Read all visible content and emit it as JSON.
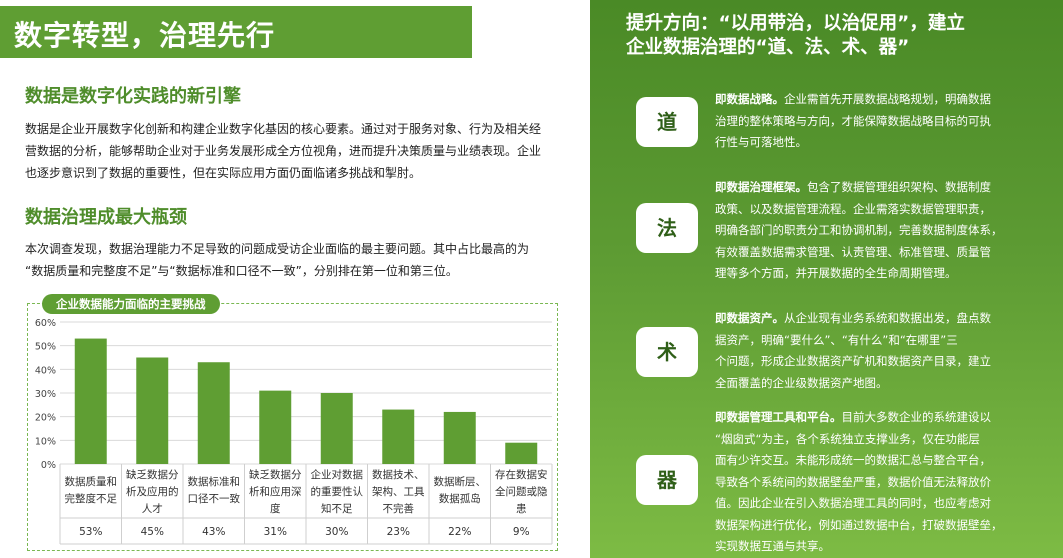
{
  "header": {
    "title": "数字转型，治理先行"
  },
  "section1": {
    "heading": "数据是数字化实践的新引擎",
    "lines": [
      "数据是企业开展数字化创新和构建企业数字化基因的核心要素。通过对于服务对象、行为及相关经",
      "营数据的分析，能够帮助企业对于业务发展形成全方位视角，进而提升决策质量与业绩表现。企业",
      "也逐步意识到了数据的重要性，但在实际应用方面仍面临诸多挑战和掣肘。"
    ]
  },
  "section2": {
    "heading": "数据治理成最大瓶颈",
    "lines": [
      "本次调查发现，数据治理能力不足导致的问题成受访企业面临的最主要问题。其中占比最高的为",
      "“数据质量和完整度不足”与“数据标准和口径不一致”，分别排在第一位和第三位。"
    ]
  },
  "chart_data": {
    "type": "bar",
    "title": "企业数据能力面临的主要挑战",
    "categories": [
      [
        "数据质量和",
        "完整度不足"
      ],
      [
        "缺乏数据分",
        "析及应用的",
        "人才"
      ],
      [
        "数据标准和",
        "口径不一致"
      ],
      [
        "缺乏数据分",
        "析和应用深",
        "度"
      ],
      [
        "企业对数据",
        "的重要性认",
        "知不足"
      ],
      [
        "数据技术、",
        "架构、工具",
        "不完善"
      ],
      [
        "数据断层、",
        "数据孤岛"
      ],
      [
        "存在数据安",
        "全问题或隐",
        "患"
      ]
    ],
    "values": [
      53,
      45,
      43,
      31,
      30,
      23,
      22,
      9
    ],
    "value_labels": [
      "53%",
      "45%",
      "43%",
      "31%",
      "30%",
      "23%",
      "22%",
      "9%"
    ],
    "yticks": [
      "0%",
      "10%",
      "20%",
      "30%",
      "40%",
      "50%",
      "60%"
    ],
    "ylim": [
      0,
      60
    ],
    "bar_color": "#5f9e33",
    "grid": true
  },
  "right": {
    "title_line1": "提升方向：“以用带治，以治促用”，建立",
    "title_line2": "企业数据治理的“道、法、术、器”",
    "items": [
      {
        "badge": "道",
        "label": "即数据战略。",
        "text": "企业需首先开展数据战略规划，明确数据治理的整体策略与方向，才能保障数据战略目标的可执行性与可落地性。",
        "lines": [
          "企业需首先开展数据战略规划，明确数据",
          "治理的整体策略与方向，才能保障数据战略目标的可执",
          "行性与可落地性。"
        ]
      },
      {
        "badge": "法",
        "label": "即数据治理框架。",
        "text": "",
        "lines": [
          "包含了数据管理组织架构、数据制度",
          "政策、以及数据管理流程。企业需落实数据管理职责，",
          "明确各部门的职责分工和协调机制，完善数据制度体系，",
          "有效覆盖数据需求管理、认责管理、标准管理、质量管",
          "理等多个方面，并开展数据的全生命周期管理。"
        ]
      },
      {
        "badge": "术",
        "label": "即数据资产。",
        "text": "",
        "lines": [
          "从企业现有业务系统和数据出发，盘点数",
          "据资产，明确“要什么”、“有什么”和“在哪里”三",
          "个问题，形成企业数据资产矿机和数据资产目录，建立",
          "全面覆盖的企业级数据资产地图。"
        ]
      },
      {
        "badge": "器",
        "label": "即数据管理工具和平台。",
        "text": "",
        "lines": [
          "目前大多数企业的系统建设以",
          "“烟囱式“为主，各个系统独立支撑业务，仅在功能层",
          "面有少许交互。未能形成统一的数据汇总与整合平台，",
          "导致各个系统间的数据壁垒严重，数据价值无法释放价",
          "值。因此企业在引入数据治理工具的同时，也应考虑对",
          "数据架构进行优化，例如通过数据中台，打破数据壁垒，",
          "实现数据互通与共享。"
        ]
      }
    ]
  }
}
